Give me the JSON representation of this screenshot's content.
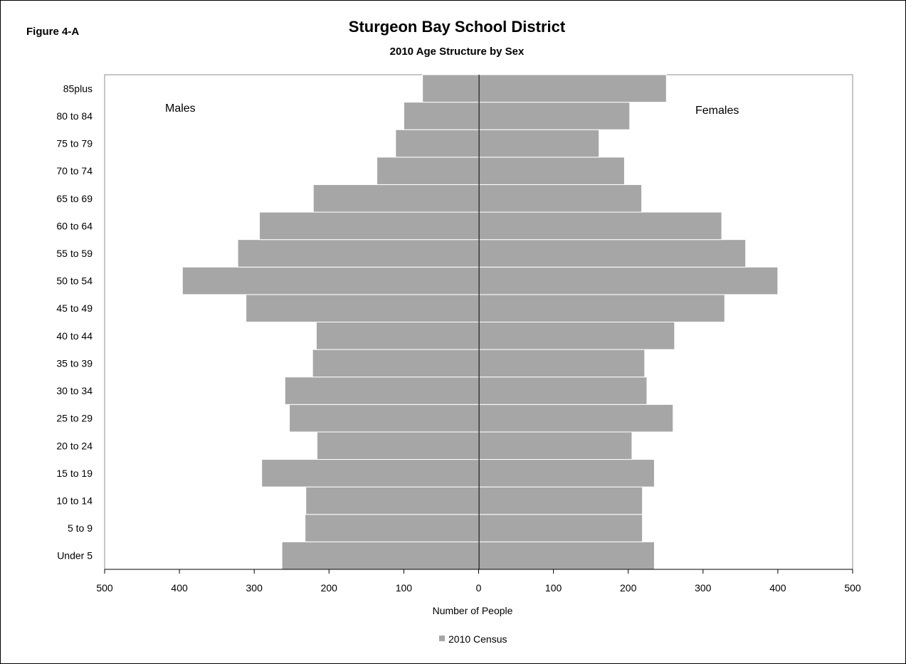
{
  "figure_label": "Figure 4-A",
  "chart_data": {
    "type": "bar",
    "orientation": "horizontal",
    "layout": "population-pyramid",
    "title": "Sturgeon Bay School District",
    "subtitle": "2010 Age Structure by Sex",
    "xlabel": "Number of People",
    "ylabel": "",
    "xlim": [
      -500,
      500
    ],
    "x_ticks": [
      -500,
      -400,
      -300,
      -200,
      -100,
      0,
      100,
      200,
      300,
      400,
      500
    ],
    "x_tick_labels": [
      "500",
      "400",
      "300",
      "200",
      "100",
      "0",
      "100",
      "200",
      "300",
      "400",
      "500"
    ],
    "categories": [
      "Under 5",
      "5 to 9",
      "10 to 14",
      "15 to 19",
      "20 to 24",
      "25 to 29",
      "30 to 34",
      "35 to 39",
      "40 to 44",
      "45 to 49",
      "50 to 54",
      "55 to 59",
      "60 to 64",
      "65 to 69",
      "70 to 74",
      "75 to 79",
      "80 to 84",
      "85plus"
    ],
    "panel_labels": {
      "left": "Males",
      "right": "Females"
    },
    "series": [
      {
        "side": "left",
        "values": [
          263,
          232,
          231,
          290,
          216,
          253,
          259,
          222,
          217,
          311,
          396,
          322,
          293,
          221,
          136,
          111,
          100,
          75
        ]
      },
      {
        "side": "right",
        "values": [
          235,
          219,
          219,
          235,
          205,
          260,
          225,
          222,
          262,
          329,
          400,
          357,
          325,
          218,
          195,
          161,
          202,
          251
        ]
      }
    ],
    "legend": {
      "label": "2010 Census",
      "position": "bottom"
    },
    "bar_color": "#a6a6a6",
    "grid": false
  }
}
